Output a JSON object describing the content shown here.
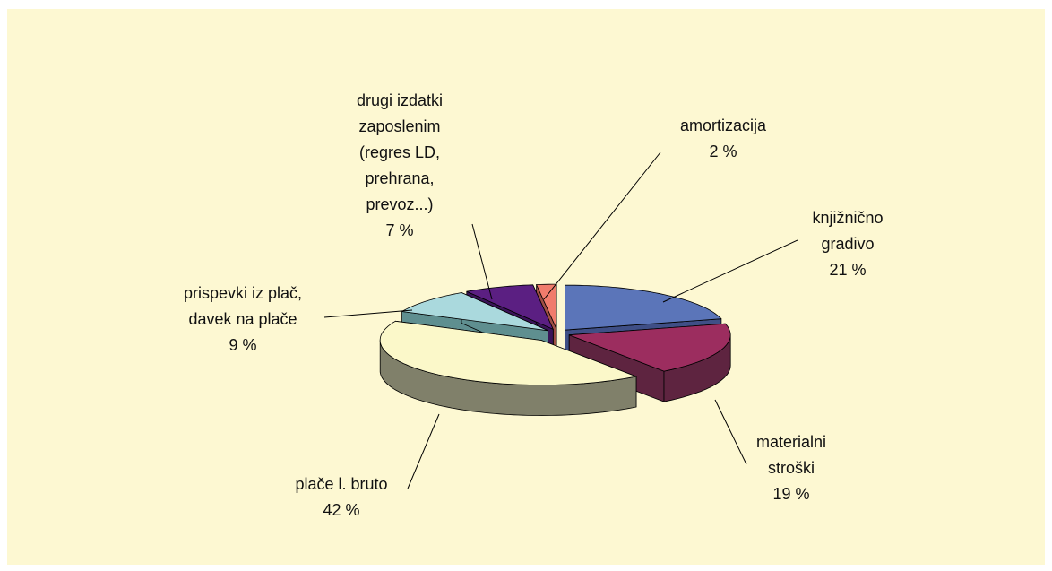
{
  "chart_data": {
    "type": "pie3d",
    "categories": [
      "knjižnično\ngradivo",
      "materialni\nstroški",
      "plače l. bruto",
      "prispevki iz plač,\ndavek na plače",
      "drugi izdatki\nzaposlenim\n(regres LD,\nprehrana,\nprevoz...)",
      "amortizacija"
    ],
    "values": [
      21,
      19,
      42,
      9,
      7,
      2
    ],
    "value_labels": [
      "21 %",
      "19 %",
      "42 %",
      "9 %",
      "7 %",
      "2 %"
    ],
    "colors": [
      "#5b75b9",
      "#9c2d5f",
      "#fbf8c9",
      "#aad9dd",
      "#5b1f82",
      "#f07c6c"
    ],
    "side_colors": [
      "#3f4f86",
      "#5e2440",
      "#80806a",
      "#5f8f90",
      "#3a1458",
      "#a04f45"
    ]
  }
}
